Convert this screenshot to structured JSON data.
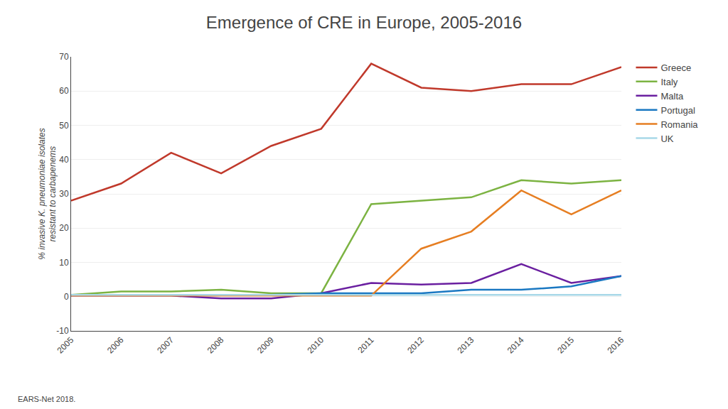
{
  "chart_data": {
    "type": "line",
    "title": "Emergence of CRE in Europe, 2005-2016",
    "ylabel": [
      "% invasive K. pneumoniae isolates",
      "resistant to carbapenems"
    ],
    "source": "EARS-Net 2018.",
    "x": [
      2005,
      2006,
      2007,
      2008,
      2009,
      2010,
      2011,
      2012,
      2013,
      2014,
      2015,
      2016
    ],
    "series": [
      {
        "name": "Greece",
        "color": "#c0392b",
        "values": [
          28,
          33,
          42,
          36,
          44,
          49,
          68,
          61,
          60,
          62,
          62,
          67
        ]
      },
      {
        "name": "Italy",
        "color": "#7cb342",
        "values": [
          0.5,
          1.5,
          1.5,
          2,
          1,
          1,
          27,
          28,
          29,
          34,
          33,
          34
        ]
      },
      {
        "name": "Malta",
        "color": "#6a1fa0",
        "values": [
          0.3,
          0.3,
          0.3,
          -0.5,
          -0.5,
          1,
          4,
          3.5,
          4,
          9.5,
          4,
          6
        ]
      },
      {
        "name": "Portugal",
        "color": "#1a78c2",
        "values": [
          0.5,
          0.5,
          0.5,
          0.5,
          0.5,
          1,
          1,
          1,
          2,
          2,
          3,
          6
        ]
      },
      {
        "name": "Romania",
        "color": "#e67e22",
        "values": [
          0.3,
          0.3,
          0.3,
          0.3,
          0.3,
          0.3,
          0.3,
          14,
          19,
          31,
          24,
          31
        ]
      },
      {
        "name": "UK",
        "color": "#a8d8e8",
        "values": [
          0.5,
          0.5,
          0.5,
          0.5,
          0.5,
          0.5,
          0.5,
          0.5,
          0.5,
          0.5,
          0.5,
          0.5
        ]
      }
    ],
    "xlim": [
      2005,
      2016
    ],
    "xticks": [
      2005,
      2006,
      2007,
      2008,
      2009,
      2010,
      2011,
      2012,
      2013,
      2014,
      2015,
      2016
    ],
    "ylim": [
      -10,
      70
    ],
    "yticks": [
      -10,
      0,
      10,
      20,
      30,
      40,
      50,
      60,
      70
    ],
    "grid": "y",
    "legend": "right"
  }
}
